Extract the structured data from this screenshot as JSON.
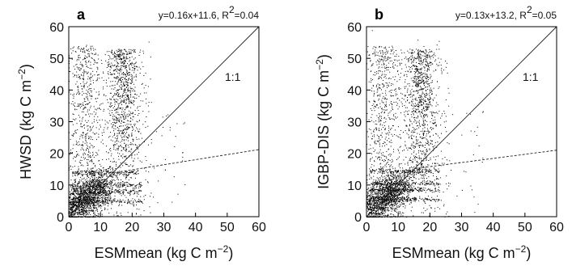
{
  "chart_data": [
    {
      "type": "scatter",
      "panel_label": "a",
      "equation": {
        "text": "y=0.16x+11.6, R",
        "sup": "2",
        "tail": "=0.04"
      },
      "fit": {
        "slope": 0.16,
        "intercept": 11.6
      },
      "reference_line_label": "1:1",
      "xlabel": {
        "text": "ESMmean (kg C m",
        "sup": "−2",
        "tail": ")"
      },
      "ylabel": {
        "text": "HWSD (kg C m",
        "sup": "−2",
        "tail": ")"
      },
      "xlim": [
        0,
        60
      ],
      "ylim": [
        0,
        60
      ],
      "xticks": [
        0,
        10,
        20,
        30,
        40,
        50,
        60
      ],
      "yticks": [
        0,
        10,
        20,
        30,
        40,
        50,
        60
      ],
      "grid": false,
      "point_color": "#000000"
    },
    {
      "type": "scatter",
      "panel_label": "b",
      "equation": {
        "text": "y=0.13x+13.2, R",
        "sup": "2",
        "tail": "=0.05"
      },
      "fit": {
        "slope": 0.13,
        "intercept": 13.2
      },
      "reference_line_label": "1:1",
      "xlabel": {
        "text": "ESMmean (kg C m",
        "sup": "−2",
        "tail": ")"
      },
      "ylabel": {
        "text": "IGBP-DIS (kg C m",
        "sup": "−2",
        "tail": ")"
      },
      "xlim": [
        0,
        60
      ],
      "ylim": [
        0,
        60
      ],
      "xticks": [
        0,
        10,
        20,
        30,
        40,
        50,
        60
      ],
      "yticks": [
        0,
        10,
        20,
        30,
        40,
        50,
        60
      ],
      "grid": false,
      "point_color": "#000000"
    }
  ]
}
